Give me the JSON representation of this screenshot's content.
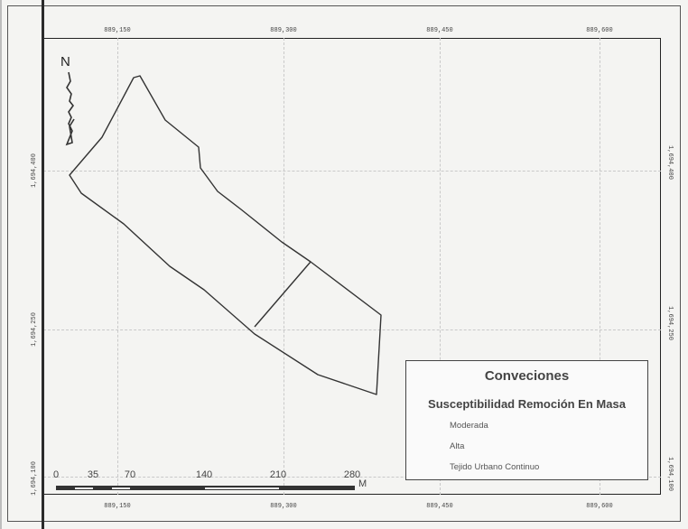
{
  "map": {
    "north_label": "N",
    "x_ticks_top": [
      "889,150",
      "889,300",
      "889,450",
      "889,600"
    ],
    "x_ticks_bottom": [
      "889,150",
      "889,300",
      "889,450",
      "889,600"
    ],
    "y_ticks_left": [
      "1,694,400",
      "1,694,250",
      "1,694,100"
    ],
    "y_ticks_right": [
      "1,694,400",
      "1,694,250",
      "1,694,100"
    ]
  },
  "legend": {
    "title": "Conveciones",
    "subtitle": "Susceptibilidad Remoción En Masa",
    "items": [
      "Moderada",
      "Alta",
      "Tejido Urbano Continuo"
    ]
  },
  "scale": {
    "labels": [
      "0",
      "35",
      "70",
      "140",
      "210",
      "280"
    ],
    "unit": "M"
  }
}
